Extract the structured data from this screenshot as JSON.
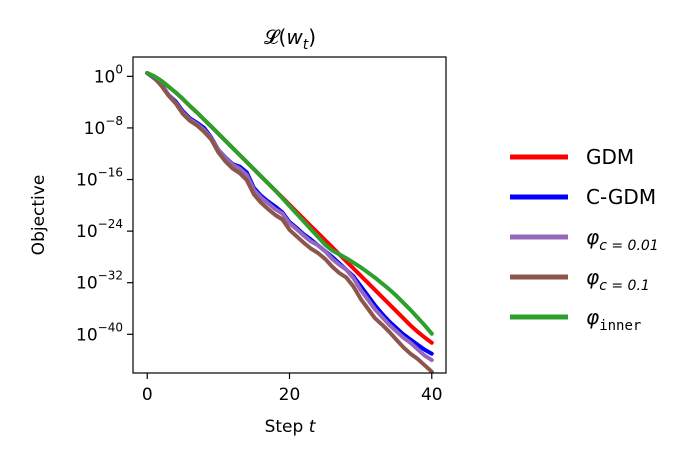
{
  "chart_data": {
    "type": "line",
    "title": "𝓛(w_t)",
    "title_parts": {
      "main": "𝓛(",
      "var": "w",
      "sub": "t",
      "close": ")"
    },
    "xlabel": "Step",
    "xlabel_var": "t",
    "ylabel": "Objective",
    "y_scale": "log10",
    "xlim": [
      -2,
      42
    ],
    "ylim_exp": [
      -46,
      3
    ],
    "x_ticks": [
      0,
      20,
      40
    ],
    "y_ticks": [
      {
        "base": "10",
        "exp": "0",
        "value": 0
      },
      {
        "base": "10",
        "exp": "−8",
        "value": -8
      },
      {
        "base": "10",
        "exp": "−16",
        "value": -16
      },
      {
        "base": "10",
        "exp": "−24",
        "value": -24
      },
      {
        "base": "10",
        "exp": "−32",
        "value": -32
      },
      {
        "base": "10",
        "exp": "−40",
        "value": -40
      }
    ],
    "grid": false,
    "legend_position": "right, outside",
    "x": [
      0,
      1,
      2,
      3,
      4,
      5,
      6,
      7,
      8,
      9,
      10,
      11,
      12,
      13,
      14,
      15,
      16,
      17,
      18,
      19,
      20,
      21,
      22,
      23,
      24,
      25,
      26,
      27,
      28,
      29,
      30,
      31,
      32,
      33,
      34,
      35,
      36,
      37,
      38,
      39,
      40
    ],
    "series": [
      {
        "name": "GDM",
        "label_main": "GDM",
        "label_sub": "",
        "color": "#ff0000",
        "values_log10": [
          0.5,
          0,
          -0.7,
          -1.6,
          -2.5,
          -3.5,
          -4.6,
          -5.6,
          -6.7,
          -7.8,
          -8.9,
          -10,
          -11.1,
          -12.2,
          -13.3,
          -14.4,
          -15.5,
          -16.6,
          -17.7,
          -18.8,
          -19.9,
          -21,
          -22.1,
          -23.2,
          -24.3,
          -25.4,
          -26.5,
          -27.6,
          -28.7,
          -29.8,
          -30.9,
          -32,
          -33.1,
          -34.2,
          -35.3,
          -36.4,
          -37.5,
          -38.6,
          -39.6,
          -40.5,
          -41.3
        ]
      },
      {
        "name": "C-GDM",
        "label_main": "C-GDM",
        "label_sub": "",
        "color": "#0000ff",
        "values_log10": [
          0.5,
          -0.3,
          -1.3,
          -2.9,
          -3.9,
          -5.4,
          -6.5,
          -7.2,
          -8,
          -9.5,
          -11.4,
          -12.6,
          -13.6,
          -14,
          -14.9,
          -17.3,
          -18.5,
          -19.4,
          -20.2,
          -21.1,
          -22.6,
          -23.5,
          -24.5,
          -25.3,
          -26.2,
          -27.1,
          -28,
          -29,
          -30,
          -31,
          -32.5,
          -34,
          -35.5,
          -36.8,
          -38,
          -39,
          -40,
          -40.8,
          -41.6,
          -42.4,
          -43
        ]
      },
      {
        "name": "φ_{c=0.01}",
        "label_main": "φ",
        "label_sub": "c = 0.01",
        "color": "#9467bd",
        "values_log10": [
          0.5,
          -0.2,
          -1.4,
          -2.9,
          -4.1,
          -5.6,
          -6.7,
          -7.4,
          -8.3,
          -9.6,
          -11.4,
          -12.7,
          -13.7,
          -14.3,
          -15.3,
          -17.6,
          -18.8,
          -19.7,
          -20.6,
          -21.3,
          -22.8,
          -23.7,
          -24.7,
          -25.6,
          -26.2,
          -27.1,
          -28.3,
          -29.2,
          -30,
          -31.3,
          -33.1,
          -34.6,
          -36.1,
          -37.3,
          -38.5,
          -39.5,
          -40.5,
          -41.3,
          -42.3,
          -43.3,
          -44
        ]
      },
      {
        "name": "φ_{c=0.1}",
        "label_main": "φ",
        "label_sub": "c = 0.1",
        "color": "#8c564b",
        "values_log10": [
          0.5,
          -0.2,
          -1.5,
          -3,
          -4.2,
          -5.8,
          -6.9,
          -7.6,
          -8.6,
          -9.8,
          -11.8,
          -13.2,
          -14.3,
          -15,
          -16.1,
          -18.3,
          -19.6,
          -20.6,
          -21.5,
          -22.2,
          -23.8,
          -24.8,
          -25.8,
          -26.7,
          -27.4,
          -28.3,
          -29.5,
          -30.5,
          -31.2,
          -32.6,
          -34.5,
          -36,
          -37.5,
          -38.5,
          -39.6,
          -40.8,
          -42,
          -43,
          -43.8,
          -44.8,
          -45.8
        ]
      },
      {
        "name": "φ_inner",
        "label_main": "φ",
        "label_sub": "inner",
        "color": "#2ca02c",
        "values_log10": [
          0.5,
          0,
          -0.7,
          -1.6,
          -2.5,
          -3.5,
          -4.6,
          -5.6,
          -6.7,
          -7.8,
          -8.9,
          -10,
          -11.1,
          -12.2,
          -13.3,
          -14.4,
          -15.5,
          -16.6,
          -17.7,
          -18.9,
          -20.1,
          -21.3,
          -22.5,
          -23.7,
          -24.9,
          -26.1,
          -27,
          -27.6,
          -28.2,
          -28.9,
          -29.6,
          -30.4,
          -31.2,
          -32.1,
          -33,
          -34,
          -35.1,
          -36.2,
          -37.4,
          -38.6,
          -39.9
        ]
      }
    ]
  }
}
